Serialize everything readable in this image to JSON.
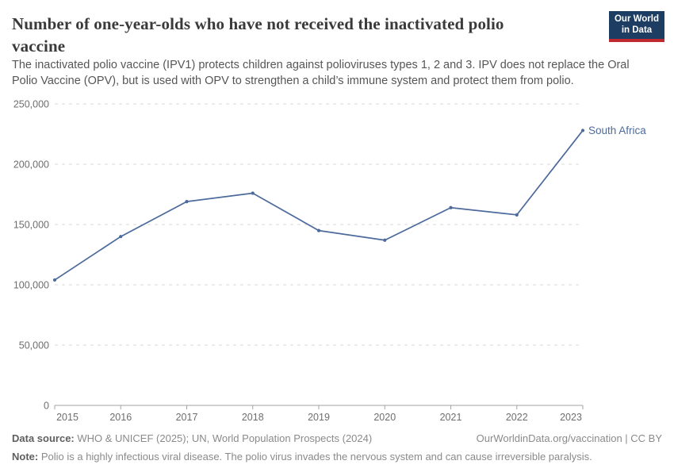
{
  "header": {
    "title": "Number of one-year-olds who have not received the inactivated polio vaccine",
    "subtitle": "The inactivated polio vaccine (IPV1) protects children against polioviruses types 1, 2 and 3. IPV does not replace the Oral Polio Vaccine (OPV), but is used with OPV to strengthen a child’s immune system and protect them from polio.",
    "logo_line1": "Our World",
    "logo_line2": "in Data"
  },
  "chart_data": {
    "type": "line",
    "title": "Number of one-year-olds who have not received the inactivated polio vaccine",
    "x": [
      2015,
      2016,
      2017,
      2018,
      2019,
      2020,
      2021,
      2022,
      2023
    ],
    "series": [
      {
        "name": "South Africa",
        "color": "#4C6A9C",
        "values": [
          104000,
          140000,
          169000,
          176000,
          145000,
          137000,
          164000,
          158000,
          228000
        ]
      }
    ],
    "ylim": [
      0,
      250000
    ],
    "yticks": [
      0,
      50000,
      100000,
      150000,
      200000,
      250000
    ],
    "ytick_labels": [
      "0",
      "50,000",
      "100,000",
      "150,000",
      "200,000",
      "250,000"
    ],
    "xlabel": "",
    "ylabel": "",
    "grid": "horizontal-dashed",
    "legend": "end-of-line-label"
  },
  "footer": {
    "source_label": "Data source:",
    "source_text": " WHO & UNICEF (2025); UN, World Population Prospects (2024)",
    "license": "OurWorldinData.org/vaccination | CC BY",
    "note_label": "Note:",
    "note_text": " Polio is a highly infectious viral disease. The polio virus invades the nervous system and can cause irreversible paralysis."
  },
  "colors": {
    "accent": "#4C6A9C",
    "logo_bg": "#1D3D63",
    "logo_red": "#C0282F",
    "grid": "#D9D9D9",
    "axis": "#A3A3A3",
    "tick_label": "#6E6E6E",
    "title": "#3A3A3A",
    "subtitle": "#565656",
    "footer_text": "#8A8A8A"
  }
}
